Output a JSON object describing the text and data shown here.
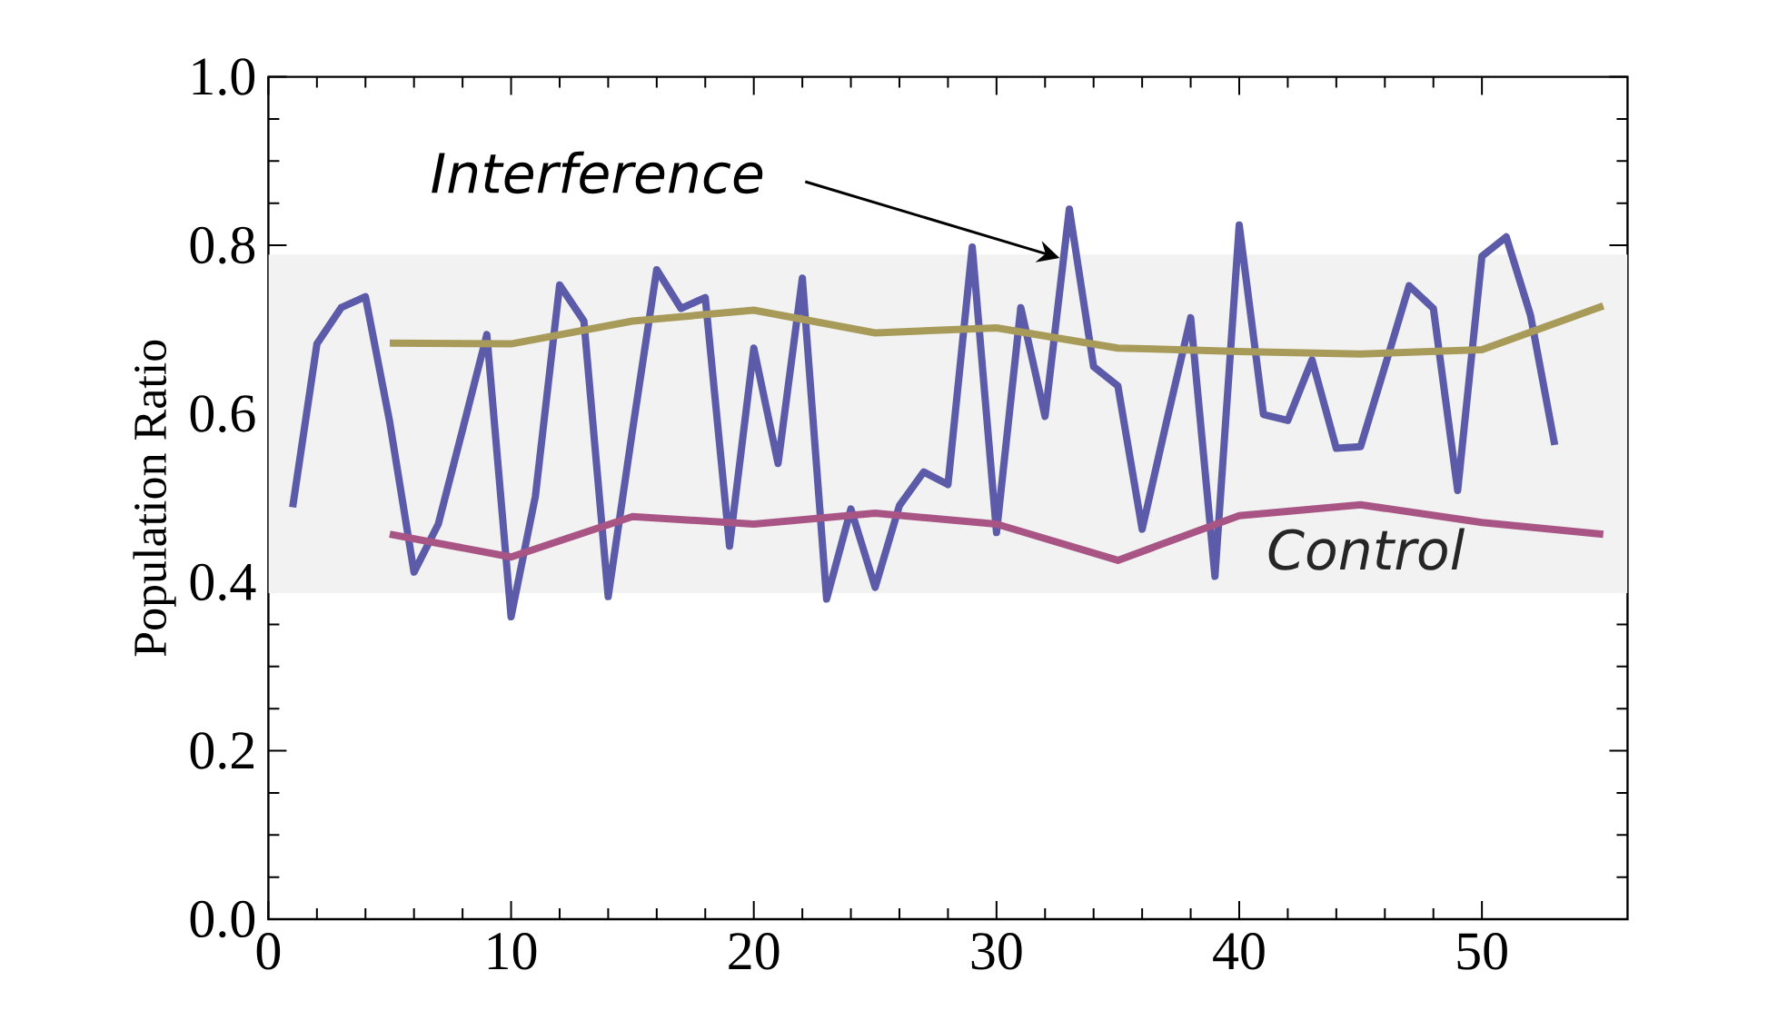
{
  "chart_data": {
    "type": "line",
    "ylabel": "Population Ratio",
    "xlim": [
      0,
      56
    ],
    "ylim": [
      0,
      1
    ],
    "xticks": [
      0,
      10,
      20,
      30,
      40,
      50
    ],
    "yticks": [
      {
        "value": 0,
        "label": "0.0"
      },
      {
        "value": 0.2,
        "label": "0.2"
      },
      {
        "value": 0.4,
        "label": "0.4"
      },
      {
        "value": 0.6,
        "label": "0.6"
      },
      {
        "value": 0.8,
        "label": "0.8"
      },
      {
        "value": 1,
        "label": "1.0"
      }
    ],
    "grid": false,
    "marker": "none",
    "line_style": "solid",
    "bands": [
      {
        "axis": "y",
        "from": 0.387,
        "to": 0.789,
        "color": "#f2f2f2"
      }
    ],
    "annotations": [
      {
        "text": "Interference",
        "x": 32.6,
        "y": 0.785
      },
      "Control"
    ],
    "series": [
      {
        "color": "#5b5baa",
        "x": [
          1,
          2,
          3,
          4,
          5,
          6,
          7,
          8,
          9,
          10,
          11,
          12,
          13,
          14,
          15,
          16,
          17,
          18,
          19,
          20,
          21,
          22,
          23,
          24,
          25,
          26,
          27,
          28,
          29,
          30,
          31,
          32,
          33,
          34,
          35,
          36,
          37,
          38,
          39,
          40,
          41,
          42,
          43,
          44,
          45,
          46,
          47,
          48,
          49,
          50,
          51,
          52,
          53
        ],
        "values": [
          0.489,
          0.683,
          0.726,
          0.739,
          0.59,
          0.412,
          0.469,
          0.581,
          0.694,
          0.359,
          0.502,
          0.753,
          0.71,
          0.383,
          0.58,
          0.771,
          0.725,
          0.738,
          0.443,
          0.678,
          0.541,
          0.761,
          0.38,
          0.487,
          0.394,
          0.491,
          0.531,
          0.516,
          0.798,
          0.459,
          0.726,
          0.597,
          0.843,
          0.656,
          0.633,
          0.463,
          0.59,
          0.714,
          0.407,
          0.824,
          0.599,
          0.592,
          0.664,
          0.559,
          0.561,
          0.656,
          0.752,
          0.725,
          0.509,
          0.787,
          0.81,
          0.717,
          0.563
        ]
      },
      {
        "color": "#a89b5a",
        "x": [
          5,
          10,
          15,
          20,
          25,
          30,
          35,
          40,
          45,
          50,
          55
        ],
        "values": [
          0.684,
          0.683,
          0.71,
          0.723,
          0.696,
          0.702,
          0.678,
          0.674,
          0.671,
          0.676,
          0.728
        ]
      },
      {
        "color": "#a85585",
        "x": [
          5,
          10,
          15,
          20,
          25,
          30,
          35,
          40,
          45,
          50,
          55
        ],
        "values": [
          0.457,
          0.43,
          0.478,
          0.469,
          0.482,
          0.469,
          0.426,
          0.479,
          0.492,
          0.471,
          0.457
        ]
      }
    ]
  }
}
